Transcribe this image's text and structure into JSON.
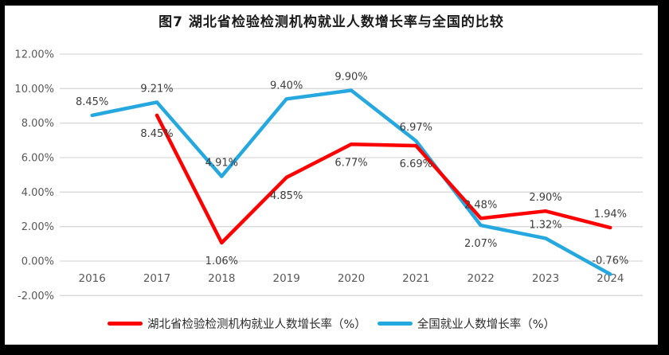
{
  "title": "图7 湖北省检验检测机构就业人数增长率与全国的比较",
  "colors": {
    "hubei_red": "#fe0000",
    "national_blue": "#25a8e0",
    "gridline": "#d9d9d9",
    "axis_text": "#595959",
    "data_label_text": "#3d3d3d",
    "frame_border": "#000000",
    "background": "#ffffff"
  },
  "chart_data": {
    "type": "line",
    "title": "图7 湖北省检验检测机构就业人数增长率与全国的比较",
    "categories": [
      "2016",
      "2017",
      "2018",
      "2019",
      "2020",
      "2021",
      "2022",
      "2023",
      "2024"
    ],
    "xlabel": "",
    "ylabel": "",
    "ylim": [
      -2,
      12
    ],
    "y_tick_labels": [
      "12.00%",
      "10.00%",
      "8.00%",
      "6.00%",
      "4.00%",
      "2.00%",
      "0.00%",
      "-2.00%"
    ],
    "grid": true,
    "legend_position": "bottom",
    "series": [
      {
        "name": "全国就业人数增长率（%）",
        "color": "#25a8e0",
        "values": [
          8.45,
          9.21,
          4.91,
          9.4,
          9.9,
          6.97,
          2.07,
          1.32,
          -0.76
        ],
        "data_labels": [
          "8.45%",
          "9.21%",
          "4.91%",
          "9.40%",
          "9.90%",
          "6.97%",
          "2.07%",
          "1.32%",
          "-0.76%"
        ],
        "label_side": [
          "above",
          "above",
          "above",
          "above",
          "above",
          "above",
          "below",
          "above",
          "above"
        ]
      },
      {
        "name": "湖北省检验检测机构就业人数增长率（%）",
        "color": "#fe0000",
        "values": [
          null,
          8.45,
          1.06,
          4.85,
          6.77,
          6.69,
          2.48,
          2.9,
          1.94
        ],
        "data_labels": [
          "",
          "8.45%",
          "1.06%",
          "4.85%",
          "6.77%",
          "6.69%",
          "2.48%",
          "2.90%",
          "1.94%"
        ],
        "label_side": [
          "",
          "below",
          "below",
          "below",
          "below",
          "below",
          "above",
          "above",
          "above"
        ]
      }
    ]
  },
  "legend": {
    "items": [
      {
        "label": "湖北省检验检测机构就业人数增长率（%）"
      },
      {
        "label": "全国就业人数增长率（%）"
      }
    ]
  }
}
